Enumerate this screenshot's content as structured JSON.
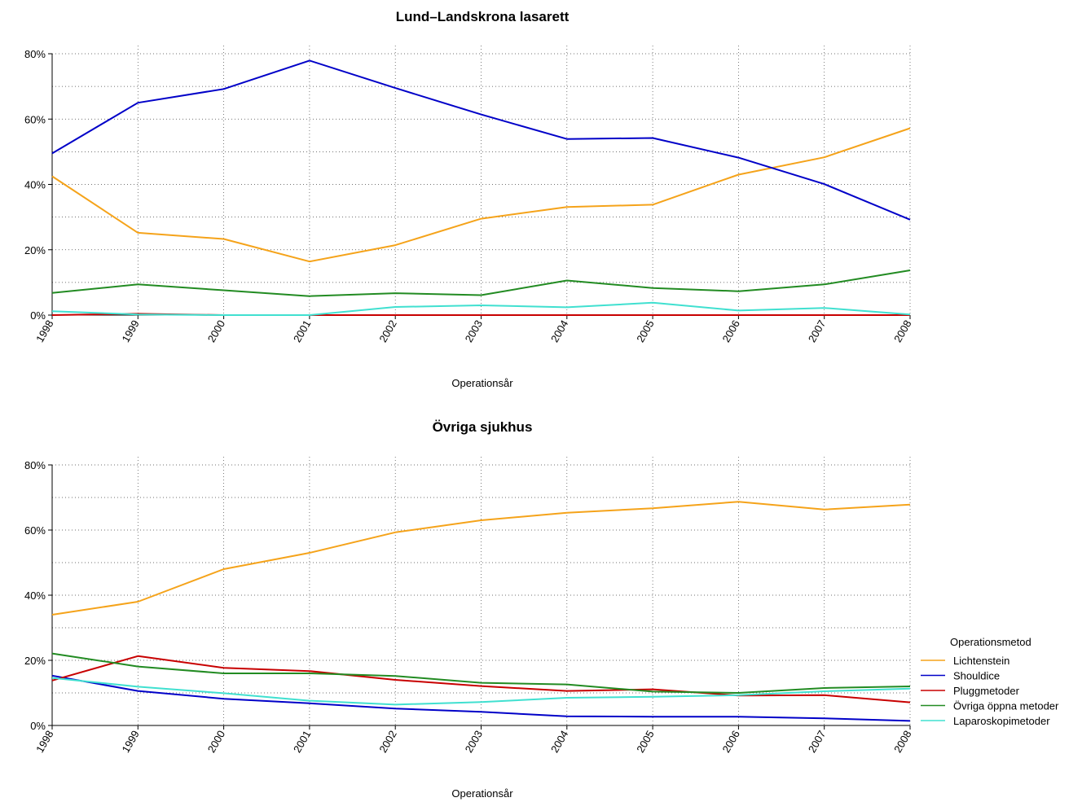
{
  "chart_data": [
    {
      "type": "line",
      "title": "Lund–Landskrona lasarett",
      "xlabel": "Operationsår",
      "ylabel": "",
      "x": [
        "1998",
        "1999",
        "2000",
        "2001",
        "2002",
        "2003",
        "2004",
        "2005",
        "2006",
        "2007",
        "2008"
      ],
      "ylim": [
        0,
        80
      ],
      "yticks": [
        "0%",
        "20%",
        "40%",
        "60%",
        "80%"
      ],
      "grid": true,
      "series": [
        {
          "name": "Lichtenstein",
          "color": "#f5a31a",
          "values": [
            42.5,
            25.2,
            23.3,
            16.4,
            21.4,
            29.5,
            33.1,
            33.8,
            43.0,
            48.3,
            57.2
          ]
        },
        {
          "name": "Shouldice",
          "color": "#0000c8",
          "values": [
            49.5,
            65.0,
            69.2,
            77.9,
            69.5,
            61.4,
            53.9,
            54.2,
            48.2,
            40.1,
            29.2
          ]
        },
        {
          "name": "Pluggmetoder",
          "color": "#c80000",
          "values": [
            0.0,
            0.4,
            0.0,
            0.0,
            0.0,
            0.0,
            0.0,
            0.0,
            0.0,
            0.0,
            0.0
          ]
        },
        {
          "name": "Övriga öppna metoder",
          "color": "#228b22",
          "values": [
            6.8,
            9.4,
            7.6,
            5.8,
            6.7,
            6.1,
            10.6,
            8.3,
            7.3,
            9.4,
            13.7
          ]
        },
        {
          "name": "Laparoskopimetoder",
          "color": "#40e0d0",
          "values": [
            1.2,
            0.2,
            0.0,
            0.0,
            2.5,
            3.0,
            2.4,
            3.8,
            1.4,
            2.2,
            0.2
          ]
        }
      ]
    },
    {
      "type": "line",
      "title": "Övriga sjukhus",
      "xlabel": "Operationsår",
      "ylabel": "",
      "x": [
        "1998",
        "1999",
        "2000",
        "2001",
        "2002",
        "2003",
        "2004",
        "2005",
        "2006",
        "2007",
        "2008"
      ],
      "ylim": [
        0,
        80
      ],
      "yticks": [
        "0%",
        "20%",
        "40%",
        "60%",
        "80%"
      ],
      "grid": true,
      "legend": {
        "title": "Operationsmetod",
        "placement": "right"
      },
      "series": [
        {
          "name": "Lichtenstein",
          "color": "#f5a31a",
          "values": [
            34.0,
            38.0,
            48.0,
            53.0,
            59.3,
            63.0,
            65.3,
            66.7,
            68.7,
            66.3,
            67.8
          ]
        },
        {
          "name": "Shouldice",
          "color": "#0000c8",
          "values": [
            15.3,
            10.6,
            8.2,
            6.8,
            5.2,
            4.2,
            2.8,
            2.7,
            2.7,
            2.2,
            1.4
          ]
        },
        {
          "name": "Pluggmetoder",
          "color": "#c80000",
          "values": [
            13.8,
            21.3,
            17.7,
            16.7,
            14.0,
            12.1,
            10.6,
            11.1,
            9.2,
            9.3,
            7.1
          ]
        },
        {
          "name": "Övriga öppna metoder",
          "color": "#228b22",
          "values": [
            22.1,
            18.1,
            16.0,
            16.0,
            15.2,
            13.1,
            12.6,
            10.4,
            10.0,
            11.5,
            12.0
          ]
        },
        {
          "name": "Laparoskopimetoder",
          "color": "#40e0d0",
          "values": [
            14.6,
            11.9,
            9.9,
            7.6,
            6.4,
            7.2,
            8.5,
            8.8,
            9.3,
            10.5,
            11.3
          ]
        }
      ]
    }
  ]
}
